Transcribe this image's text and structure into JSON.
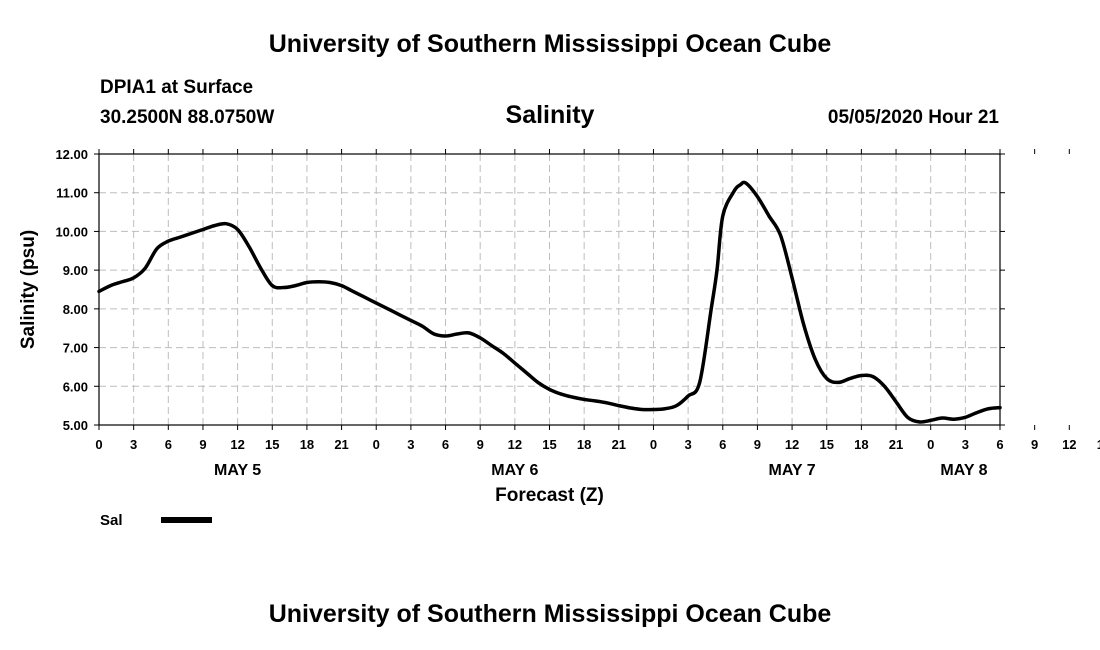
{
  "header": {
    "title": "University of Southern Mississippi Ocean Cube",
    "station": "DPIA1 at Surface",
    "coordinates": "30.2500N 88.0750W",
    "parameter": "Salinity",
    "datetime": "05/05/2020 Hour 21"
  },
  "footer": {
    "title": "University of Southern Mississippi Ocean Cube"
  },
  "chart_data": {
    "type": "line",
    "xlabel": "Forecast (Z)",
    "ylabel": "Salinity (psu)",
    "ylim": [
      5.0,
      12.0
    ],
    "y_ticks": [
      "5.00",
      "6.00",
      "7.00",
      "8.00",
      "9.00",
      "10.00",
      "11.00",
      "12.00"
    ],
    "xlim_hours": [
      0,
      78
    ],
    "x_tick_labels": [
      "0",
      "3",
      "6",
      "9",
      "12",
      "15",
      "18",
      "21",
      "0",
      "3",
      "6",
      "9",
      "12",
      "15",
      "18",
      "21",
      "0",
      "3",
      "6",
      "9",
      "12",
      "15",
      "18",
      "21",
      "0",
      "3",
      "6",
      "9",
      "12",
      "15",
      "18",
      "21",
      "0",
      "3",
      "6"
    ],
    "date_labels": [
      {
        "label": "MAY 5",
        "hour": 12
      },
      {
        "label": "MAY 6",
        "hour": 36
      },
      {
        "label": "MAY 7",
        "hour": 60
      },
      {
        "label": "MAY 8",
        "hour": 78
      }
    ],
    "grid": true,
    "legend_position": "bottom-left",
    "series": [
      {
        "name": "Sal",
        "color": "#000000",
        "x": [
          0,
          1,
          2,
          3,
          4,
          5,
          6,
          7,
          8,
          9,
          10,
          11,
          12,
          13,
          14,
          15,
          16,
          17,
          18,
          19,
          20,
          21,
          22,
          23,
          24,
          25,
          26,
          27,
          28,
          29,
          30,
          31,
          32,
          33,
          34,
          35,
          36,
          37,
          38,
          39,
          40,
          41,
          42,
          43,
          44,
          45,
          46,
          47,
          48,
          49,
          50,
          51,
          52,
          53,
          53.5,
          54,
          55,
          55.5,
          56,
          57,
          58,
          59,
          60,
          61,
          62,
          63,
          64,
          65,
          66,
          67,
          68,
          69,
          70,
          71,
          72,
          73,
          74,
          75,
          76,
          77,
          78
        ],
        "values": [
          8.45,
          8.6,
          8.7,
          8.8,
          9.05,
          9.55,
          9.75,
          9.85,
          9.95,
          10.05,
          10.15,
          10.2,
          10.05,
          9.6,
          9.05,
          8.6,
          8.55,
          8.6,
          8.68,
          8.7,
          8.68,
          8.6,
          8.45,
          8.3,
          8.15,
          8.0,
          7.85,
          7.7,
          7.55,
          7.35,
          7.3,
          7.35,
          7.38,
          7.25,
          7.05,
          6.85,
          6.6,
          6.35,
          6.1,
          5.92,
          5.8,
          5.72,
          5.66,
          5.62,
          5.57,
          5.5,
          5.44,
          5.4,
          5.4,
          5.42,
          5.5,
          5.75,
          6.1,
          8.0,
          9.0,
          10.4,
          11.05,
          11.2,
          11.25,
          10.9,
          10.4,
          9.9,
          8.8,
          7.6,
          6.7,
          6.2,
          6.1,
          6.2,
          6.28,
          6.25,
          6.0,
          5.6,
          5.2,
          5.08,
          5.12,
          5.18,
          5.15,
          5.2,
          5.32,
          5.42,
          5.45
        ]
      }
    ]
  }
}
